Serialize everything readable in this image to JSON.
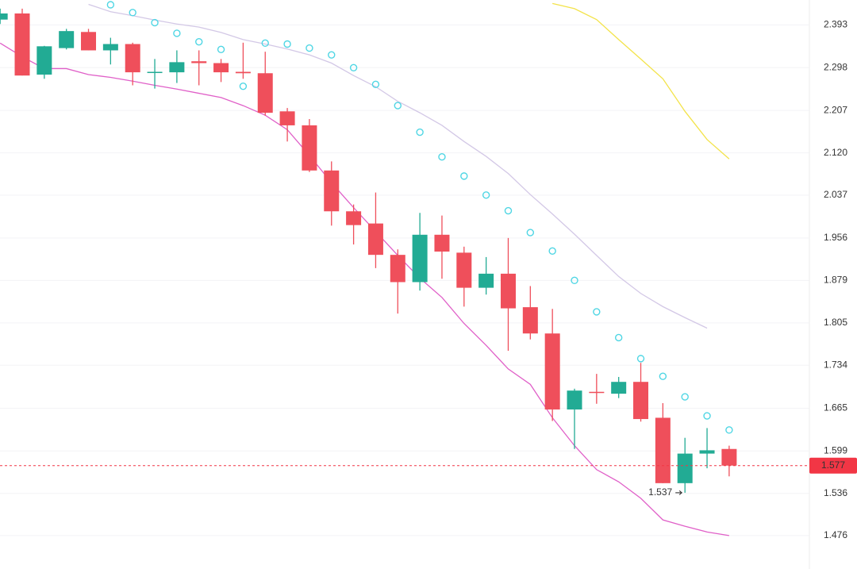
{
  "chart_data": {
    "type": "candlestick",
    "log_scale": true,
    "grid": true,
    "ylim": [
      1.43,
      2.45
    ],
    "yticks": [
      2.393,
      2.298,
      2.207,
      {
        "value": 2.12,
        "label": "2.120"
      },
      2.037,
      1.956,
      1.879,
      1.805,
      1.734,
      1.665,
      1.599,
      1.536,
      1.476
    ],
    "up_color": "#22ab94",
    "down_color": "#ef4f5b",
    "candles": {
      "open": [
        2.405,
        2.419,
        2.283,
        2.341,
        2.377,
        2.336,
        2.35,
        2.288,
        2.288,
        2.312,
        2.308,
        2.289,
        2.286,
        2.205,
        2.176,
        2.085,
        2.006,
        1.983,
        1.925,
        1.876,
        1.962,
        1.929,
        1.866,
        1.891,
        1.832,
        1.787,
        1.663,
        1.691,
        1.688,
        1.707,
        1.65,
        1.551,
        1.595,
        1.602
      ],
      "high": [
        2.43,
        2.43,
        2.346,
        2.384,
        2.384,
        2.364,
        2.353,
        2.317,
        2.336,
        2.336,
        2.317,
        2.353,
        2.333,
        2.212,
        2.189,
        2.103,
        2.019,
        2.042,
        1.935,
        2.003,
        1.998,
        1.94,
        1.921,
        1.956,
        1.869,
        1.829,
        1.696,
        1.72,
        1.715,
        1.738,
        1.673,
        1.619,
        1.634,
        1.607
      ],
      "low": [
        2.395,
        2.281,
        2.274,
        2.338,
        2.336,
        2.305,
        2.26,
        2.253,
        2.265,
        2.26,
        2.267,
        2.274,
        2.196,
        2.143,
        2.082,
        1.979,
        1.944,
        1.901,
        1.821,
        1.861,
        1.882,
        1.833,
        1.854,
        1.758,
        1.777,
        1.645,
        1.602,
        1.672,
        1.681,
        1.644,
        1.551,
        1.537,
        1.573,
        1.561
      ],
      "close": [
        2.419,
        2.281,
        2.345,
        2.379,
        2.336,
        2.35,
        2.288,
        2.289,
        2.31,
        2.308,
        2.288,
        2.286,
        2.202,
        2.176,
        2.085,
        2.006,
        1.98,
        1.925,
        1.876,
        1.962,
        1.931,
        1.866,
        1.891,
        1.83,
        1.787,
        1.663,
        1.693,
        1.69,
        1.707,
        1.648,
        1.551,
        1.595,
        1.6,
        1.577
      ]
    },
    "overlays": [
      {
        "kind": "line",
        "color": "#e060c8",
        "values": [
          2.352,
          2.322,
          2.296,
          2.296,
          2.283,
          2.277,
          2.269,
          2.26,
          2.252,
          2.243,
          2.234,
          2.217,
          2.197,
          2.167,
          2.115,
          2.061,
          2.013,
          1.968,
          1.924,
          1.883,
          1.849,
          1.804,
          1.767,
          1.728,
          1.703,
          1.65,
          1.607,
          1.571,
          1.553,
          1.529,
          1.498,
          1.489,
          1.481,
          1.476
        ]
      },
      {
        "kind": "line",
        "color": "#d3c8e6",
        "values": [
          null,
          null,
          null,
          null,
          2.44,
          2.423,
          2.414,
          2.404,
          2.395,
          2.388,
          2.376,
          2.36,
          2.35,
          2.339,
          2.326,
          2.308,
          2.281,
          2.257,
          2.226,
          2.202,
          2.176,
          2.143,
          2.113,
          2.079,
          2.038,
          2.001,
          1.963,
          1.924,
          1.886,
          1.856,
          1.833,
          1.814,
          1.796,
          null
        ]
      },
      {
        "kind": "line",
        "color": "#f3e34a",
        "values": [
          null,
          null,
          null,
          null,
          null,
          null,
          null,
          null,
          null,
          null,
          null,
          null,
          null,
          null,
          null,
          null,
          null,
          null,
          null,
          null,
          null,
          null,
          null,
          null,
          null,
          2.442,
          2.43,
          2.405,
          2.36,
          2.317,
          2.274,
          2.205,
          2.147,
          2.108
        ]
      },
      {
        "kind": "dots",
        "color": "#4fd6e4",
        "values": [
          null,
          null,
          null,
          null,
          null,
          2.439,
          2.421,
          2.398,
          2.374,
          2.355,
          2.338,
          2.258,
          2.352,
          2.35,
          2.341,
          2.326,
          2.298,
          2.262,
          2.217,
          2.162,
          2.112,
          2.074,
          2.037,
          2.007,
          1.966,
          1.932,
          1.879,
          1.824,
          1.78,
          1.745,
          1.716,
          1.683,
          1.653,
          1.631
        ]
      }
    ],
    "last_price": 1.577,
    "last_price_color": "#f23645",
    "low_marker": 1.537
  }
}
